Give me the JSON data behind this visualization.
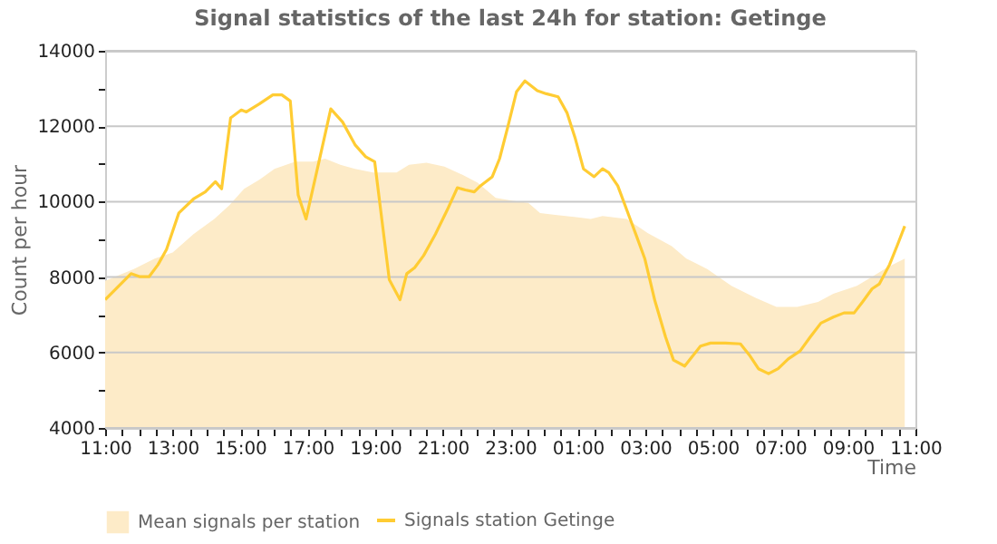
{
  "chart_data": {
    "type": "line",
    "title": "Signal statistics of the last 24h for station: Getinge",
    "xlabel": "Time",
    "ylabel": "Count per hour",
    "legend": "bottom",
    "grid": "y",
    "xlim": [
      "--01-01T11:00",
      "--01-02T11:00"
    ],
    "ylim": [
      4000,
      14000
    ],
    "xticks": [
      {
        "value": "--01-01T11:00",
        "label": "11:00"
      },
      {
        "value": "--01-01T11:30",
        "label": null
      },
      {
        "value": "--01-01T12:00",
        "label": null
      },
      {
        "value": "--01-01T12:30",
        "label": null
      },
      {
        "value": "--01-01T13:00",
        "label": "13:00"
      },
      {
        "value": "--01-01T13:30",
        "label": null
      },
      {
        "value": "--01-01T14:00",
        "label": null
      },
      {
        "value": "--01-01T14:30",
        "label": null
      },
      {
        "value": "--01-01T15:00",
        "label": "15:00"
      },
      {
        "value": "--01-01T15:30",
        "label": null
      },
      {
        "value": "--01-01T16:00",
        "label": null
      },
      {
        "value": "--01-01T16:30",
        "label": null
      },
      {
        "value": "--01-01T17:00",
        "label": "17:00"
      },
      {
        "value": "--01-01T17:30",
        "label": null
      },
      {
        "value": "--01-01T18:00",
        "label": null
      },
      {
        "value": "--01-01T18:30",
        "label": null
      },
      {
        "value": "--01-01T19:00",
        "label": "19:00"
      },
      {
        "value": "--01-01T19:30",
        "label": null
      },
      {
        "value": "--01-01T20:00",
        "label": null
      },
      {
        "value": "--01-01T20:30",
        "label": null
      },
      {
        "value": "--01-01T21:00",
        "label": "21:00"
      },
      {
        "value": "--01-01T21:30",
        "label": null
      },
      {
        "value": "--01-01T22:00",
        "label": null
      },
      {
        "value": "--01-01T22:30",
        "label": null
      },
      {
        "value": "--01-01T23:00",
        "label": "23:00"
      },
      {
        "value": "--01-01T23:30",
        "label": null
      },
      {
        "value": "--01-02T00:00",
        "label": null
      },
      {
        "value": "--01-02T00:30",
        "label": null
      },
      {
        "value": "--01-02T01:00",
        "label": "01:00"
      },
      {
        "value": "--01-02T01:30",
        "label": null
      },
      {
        "value": "--01-02T02:00",
        "label": null
      },
      {
        "value": "--01-02T02:30",
        "label": null
      },
      {
        "value": "--01-02T03:00",
        "label": "03:00"
      },
      {
        "value": "--01-02T03:30",
        "label": null
      },
      {
        "value": "--01-02T04:00",
        "label": null
      },
      {
        "value": "--01-02T04:30",
        "label": null
      },
      {
        "value": "--01-02T05:00",
        "label": "05:00"
      },
      {
        "value": "--01-02T05:30",
        "label": null
      },
      {
        "value": "--01-02T06:00",
        "label": null
      },
      {
        "value": "--01-02T06:30",
        "label": null
      },
      {
        "value": "--01-02T07:00",
        "label": "07:00"
      },
      {
        "value": "--01-02T07:30",
        "label": null
      },
      {
        "value": "--01-02T08:00",
        "label": null
      },
      {
        "value": "--01-02T08:30",
        "label": null
      },
      {
        "value": "--01-02T09:00",
        "label": "09:00"
      },
      {
        "value": "--01-02T09:30",
        "label": null
      },
      {
        "value": "--01-02T10:00",
        "label": null
      },
      {
        "value": "--01-02T10:30",
        "label": null
      },
      {
        "value": "--01-02T11:00",
        "label": "11:00"
      }
    ],
    "yticks": [
      4000,
      {
        "value": 5000,
        "label": null
      },
      6000,
      {
        "value": 7000,
        "label": null
      },
      8000,
      {
        "value": 9000,
        "label": null
      },
      10000,
      {
        "value": 11000,
        "label": null
      },
      12000,
      {
        "value": 13000,
        "label": null
      },
      14000
    ],
    "series": [
      {
        "name": "Mean signals per station",
        "type": "area",
        "color": "#fdebc8",
        "x": [
          "--01-01T11:00",
          "--01-01T11:51",
          "--01-01T12:28",
          "--01-01T13:00",
          "--01-01T13:37",
          "--01-01T14:14",
          "--01-01T14:41",
          "--01-01T15:07",
          "--01-01T15:34",
          "--01-01T16:01",
          "--01-01T16:38",
          "--01-01T17:10",
          "--01-01T17:31",
          "--01-01T17:58",
          "--01-01T18:24",
          "--01-01T18:56",
          "--01-01T19:38",
          "--01-01T20:00",
          "--01-01T20:31",
          "--01-01T21:03",
          "--01-01T21:35",
          "--01-01T22:02",
          "--01-01T22:34",
          "--01-01T23:05",
          "--01-01T23:32",
          "--01-01T23:53",
          "--01-02T00:20",
          "--01-02T00:57",
          "--01-02T01:23",
          "--01-02T01:44",
          "--01-02T02:27",
          "--01-02T03:04",
          "--01-02T03:47",
          "--01-02T04:13",
          "--01-02T04:50",
          "--01-02T05:33",
          "--01-02T06:16",
          "--01-02T06:53",
          "--01-02T07:30",
          "--01-02T08:07",
          "--01-02T08:34",
          "--01-02T09:16",
          "--01-02T09:43",
          "--01-02T10:09",
          "--01-02T10:41"
        ],
        "values": [
          7900,
          8210,
          8490,
          8650,
          9140,
          9540,
          9910,
          10340,
          10580,
          10870,
          11060,
          11060,
          11140,
          10980,
          10870,
          10770,
          10770,
          10980,
          11030,
          10930,
          10710,
          10500,
          10100,
          10020,
          9970,
          9700,
          9650,
          9590,
          9540,
          9620,
          9540,
          9170,
          8820,
          8490,
          8210,
          7770,
          7450,
          7210,
          7210,
          7340,
          7560,
          7770,
          8010,
          8250,
          8490
        ]
      },
      {
        "name": "Signals station Getinge",
        "type": "line",
        "color": "#ffcc33",
        "x": [
          "--01-01T11:00",
          "--01-01T11:46",
          "--01-01T12:02",
          "--01-01T12:18",
          "--01-01T12:34",
          "--01-01T12:49",
          "--01-01T13:11",
          "--01-01T13:37",
          "--01-01T13:58",
          "--01-01T14:16",
          "--01-01T14:27",
          "--01-01T14:43",
          "--01-01T15:02",
          "--01-01T15:11",
          "--01-01T15:34",
          "--01-01T15:58",
          "--01-01T16:14",
          "--01-01T16:29",
          "--01-01T16:43",
          "--01-01T16:57",
          "--01-01T17:20",
          "--01-01T17:41",
          "--01-01T18:02",
          "--01-01T18:24",
          "--01-01T18:43",
          "--01-01T18:59",
          "--01-01T19:25",
          "--01-01T19:44",
          "--01-01T19:56",
          "--01-01T20:10",
          "--01-01T20:26",
          "--01-01T20:47",
          "--01-01T21:08",
          "--01-01T21:26",
          "--01-01T21:40",
          "--01-01T21:56",
          "--01-01T22:07",
          "--01-01T22:28",
          "--01-01T22:41",
          "--01-01T22:55",
          "--01-01T23:11",
          "--01-01T23:26",
          "--01-01T23:48",
          "--01-02T00:04",
          "--01-02T00:25",
          "--01-02T00:41",
          "--01-02T00:55",
          "--01-02T01:10",
          "--01-02T01:29",
          "--01-02T01:44",
          "--01-02T01:55",
          "--01-02T02:11",
          "--01-02T02:27",
          "--01-02T02:43",
          "--01-02T02:59",
          "--01-02T03:17",
          "--01-02T03:36",
          "--01-02T03:50",
          "--01-02T04:10",
          "--01-02T04:38",
          "--01-02T04:56",
          "--01-02T05:22",
          "--01-02T05:49",
          "--01-02T06:05",
          "--01-02T06:21",
          "--01-02T06:39",
          "--01-02T06:56",
          "--01-02T07:14",
          "--01-02T07:35",
          "--01-02T07:53",
          "--01-02T08:12",
          "--01-02T08:34",
          "--01-02T08:53",
          "--01-02T09:11",
          "--01-02T09:26",
          "--01-02T09:43",
          "--01-02T09:56",
          "--01-02T10:14",
          "--01-02T10:28",
          "--01-02T10:41"
        ],
        "values": [
          7400,
          8090,
          8010,
          8010,
          8330,
          8730,
          9700,
          10070,
          10260,
          10530,
          10340,
          12220,
          12430,
          12380,
          12590,
          12830,
          12830,
          12670,
          10180,
          9540,
          11060,
          12460,
          12110,
          11510,
          11190,
          11060,
          7930,
          7400,
          8090,
          8250,
          8570,
          9140,
          9780,
          10370,
          10310,
          10260,
          10420,
          10660,
          11140,
          11950,
          12910,
          13200,
          12940,
          12860,
          12780,
          12350,
          11700,
          10870,
          10660,
          10870,
          10770,
          10420,
          9780,
          9140,
          8490,
          7370,
          6410,
          5800,
          5640,
          6170,
          6250,
          6250,
          6230,
          5930,
          5570,
          5440,
          5570,
          5830,
          6040,
          6410,
          6780,
          6940,
          7050,
          7050,
          7340,
          7690,
          7820,
          8330,
          8850,
          9350
        ]
      }
    ]
  }
}
